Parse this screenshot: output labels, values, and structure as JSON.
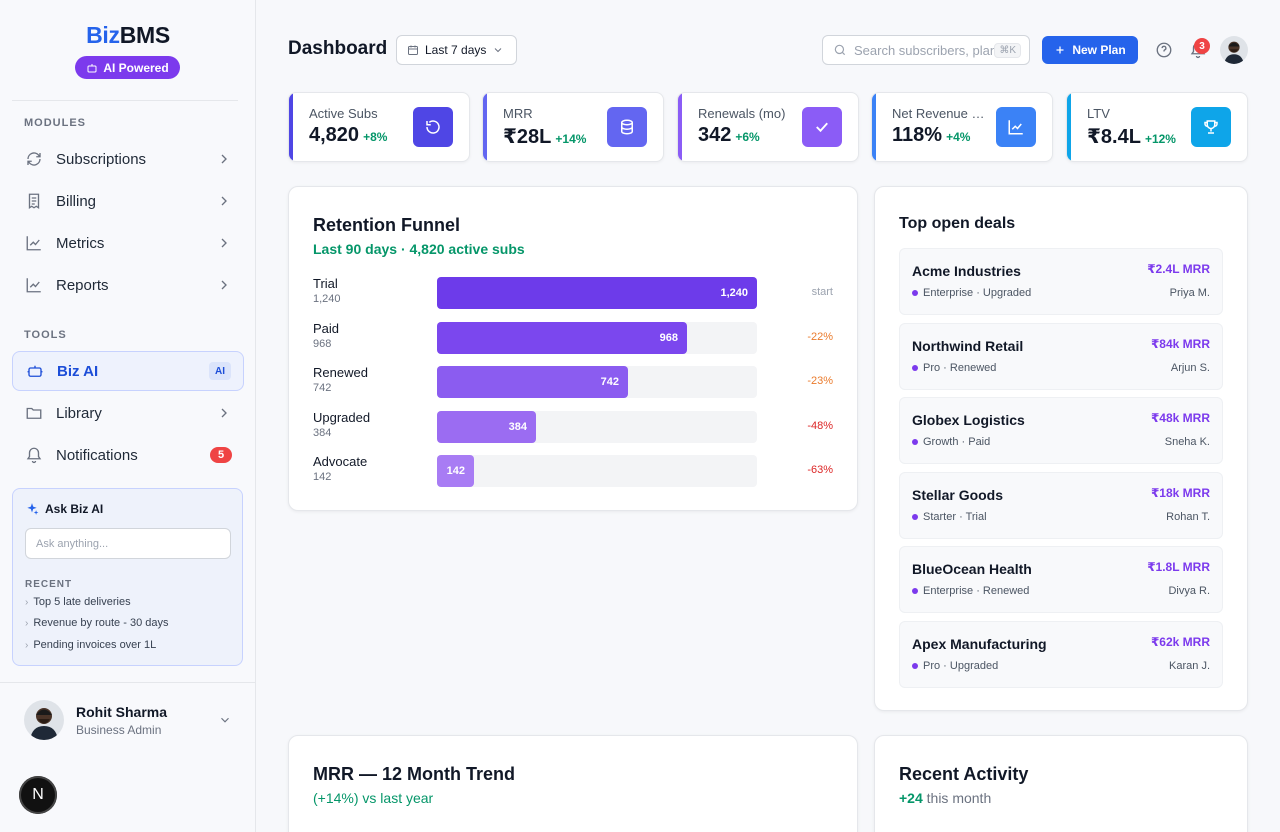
{
  "brand": {
    "part1": "Biz",
    "part2": "BMS",
    "ai_pill": "AI Powered"
  },
  "sidebar": {
    "modules_label": "MODULES",
    "modules": [
      {
        "label": "Subscriptions",
        "icon": "refresh-icon"
      },
      {
        "label": "Billing",
        "icon": "receipt-icon"
      },
      {
        "label": "Metrics",
        "icon": "chart-icon"
      },
      {
        "label": "Reports",
        "icon": "chart-icon"
      }
    ],
    "tools_label": "TOOLS",
    "tools": [
      {
        "label": "Biz AI",
        "icon": "robot-icon",
        "badge": "AI",
        "active": true
      },
      {
        "label": "Library",
        "icon": "folder-icon"
      },
      {
        "label": "Notifications",
        "icon": "bell-icon",
        "count": "5"
      }
    ],
    "ask": {
      "title": "Ask Biz AI",
      "placeholder": "Ask anything...",
      "recent_label": "RECENT",
      "recent": [
        "Top 5 late deliveries",
        "Revenue by route - 30 days",
        "Pending invoices over 1L"
      ]
    },
    "user": {
      "name": "Rohit Sharma",
      "role": "Business Admin"
    },
    "fab": "N"
  },
  "header": {
    "title": "Dashboard",
    "date_range": "Last 7 days",
    "search_placeholder": "Search subscribers, plans...",
    "search_shortcut": "⌘K",
    "new_button": "New Plan",
    "notif_count": "3"
  },
  "kpis": [
    {
      "label": "Active Subs",
      "value": "4,820",
      "delta": "+8%",
      "color": "#4f46e5",
      "icon_bg": "#4f46e5",
      "icon": "undo-icon"
    },
    {
      "label": "MRR",
      "value": "₹28L",
      "delta": "+14%",
      "color": "#6366f1",
      "icon_bg": "#6366f1",
      "icon": "coins-icon"
    },
    {
      "label": "Renewals (mo)",
      "value": "342",
      "delta": "+6%",
      "color": "#8b5cf6",
      "icon_bg": "#8b5cf6",
      "icon": "check-icon"
    },
    {
      "label": "Net Revenue Retention",
      "value": "118%",
      "delta": "+4%",
      "color": "#3b82f6",
      "icon_bg": "#3b82f6",
      "icon": "trend-icon"
    },
    {
      "label": "LTV",
      "value": "₹8.4L",
      "delta": "+12%",
      "color": "#0ea5e9",
      "icon_bg": "#0ea5e9",
      "icon": "trophy-icon"
    }
  ],
  "funnel": {
    "title": "Retention Funnel",
    "subtitle": "Last 90 days · 4,820 active subs",
    "max": 1240,
    "stages": [
      {
        "name": "Trial",
        "count": "1,240",
        "value": 1240,
        "label": "1,240",
        "change": "start",
        "change_color": "#9ca3af",
        "fill": "#6d3bea"
      },
      {
        "name": "Paid",
        "count": "968",
        "value": 968,
        "label": "968",
        "change": "-22%",
        "change_color": "#ea7b2d",
        "fill": "#7b47ee"
      },
      {
        "name": "Renewed",
        "count": "742",
        "value": 742,
        "label": "742",
        "change": "-23%",
        "change_color": "#ea7b2d",
        "fill": "#8b5cf0"
      },
      {
        "name": "Upgraded",
        "count": "384",
        "value": 384,
        "label": "384",
        "change": "-48%",
        "change_color": "#dc2626",
        "fill": "#9b6cf2"
      },
      {
        "name": "Advocate",
        "count": "142",
        "value": 142,
        "label": "142",
        "change": "-63%",
        "change_color": "#dc2626",
        "fill": "#a87cf4"
      }
    ]
  },
  "deals": {
    "title": "Top open deals",
    "items": [
      {
        "name": "Acme Industries",
        "value": "₹2.4L MRR",
        "meta": "Enterprise · Upgraded",
        "owner": "Priya M."
      },
      {
        "name": "Northwind Retail",
        "value": "₹84k MRR",
        "meta": "Pro · Renewed",
        "owner": "Arjun S."
      },
      {
        "name": "Globex Logistics",
        "value": "₹48k MRR",
        "meta": "Growth · Paid",
        "owner": "Sneha K."
      },
      {
        "name": "Stellar Goods",
        "value": "₹18k MRR",
        "meta": "Starter · Trial",
        "owner": "Rohan T."
      },
      {
        "name": "BlueOcean Health",
        "value": "₹1.8L MRR",
        "meta": "Enterprise · Renewed",
        "owner": "Divya R."
      },
      {
        "name": "Apex Manufacturing",
        "value": "₹62k MRR",
        "meta": "Pro · Upgraded",
        "owner": "Karan J."
      }
    ]
  },
  "mrr_trend": {
    "title": "MRR — 12 Month Trend",
    "subtitle": "(+14%) vs last year"
  },
  "activity": {
    "title": "Recent Activity",
    "subtitle_strong": "+24",
    "subtitle_rest": " this month"
  }
}
